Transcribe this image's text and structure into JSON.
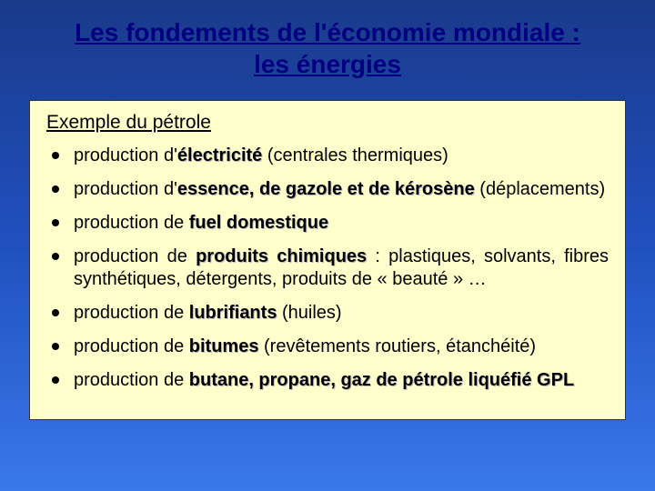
{
  "slide": {
    "title_line1": "Les fondements de l'économie mondiale :",
    "title_line2": "les énergies",
    "subheading": "Exemple du pétrole",
    "bullets": [
      {
        "pre": "production d'",
        "emph": "électricité",
        "post": " (centrales thermiques)",
        "justify": false
      },
      {
        "pre": "production d'",
        "emph": "essence, de gazole et de kérosène",
        "post": " (déplacements)",
        "justify": false
      },
      {
        "pre": "production de ",
        "emph": "fuel domestique",
        "post": "",
        "justify": false
      },
      {
        "pre": "production de ",
        "emph": "produits chimiques",
        "post": " : plastiques, solvants, fibres synthétiques, détergents, produits de « beauté » …",
        "justify": true
      },
      {
        "pre": "production de ",
        "emph": "lubrifiants",
        "post": " (huiles)",
        "justify": false
      },
      {
        "pre": "production de ",
        "emph": "bitumes",
        "post": " (revêtements routiers, étanchéité)",
        "justify": false
      },
      {
        "pre": "production de ",
        "emph": "butane, propane, gaz de pétrole liquéfié GPL",
        "post": "",
        "justify": false
      }
    ]
  },
  "style": {
    "background_gradient": [
      "#1a3a8a",
      "#2050c0",
      "#3a78e8"
    ],
    "content_bg": "#ffffcc",
    "title_color": "#000080",
    "text_color": "#000000",
    "title_fontsize_pt": 21,
    "body_fontsize_pt": 15,
    "subhead_fontsize_pt": 16
  }
}
